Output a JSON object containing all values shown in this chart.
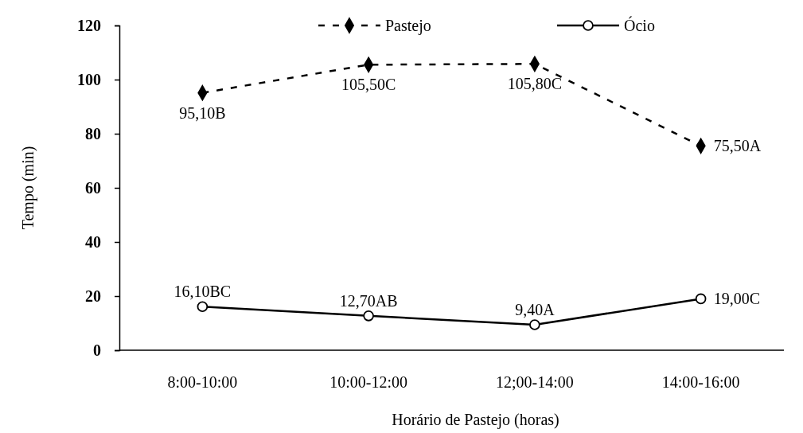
{
  "chart_data": {
    "type": "line",
    "xlabel": "Horário de Pastejo (horas)",
    "ylabel": "Tempo (min)",
    "categories": [
      "8:00-10:00",
      "10:00-12:00",
      "12;00-14:00",
      "14:00-16:00"
    ],
    "ylim": [
      0,
      120
    ],
    "yticks": [
      0,
      20,
      40,
      60,
      80,
      100,
      120
    ],
    "grid": false,
    "legend": "top",
    "series": [
      {
        "name": "Pastejo",
        "color": "#000000",
        "marker": "diamond",
        "line_style": "dashed",
        "values": [
          95.1,
          105.5,
          105.8,
          75.5
        ],
        "value_labels": [
          "95,10B",
          "105,50C",
          "105,80C",
          "75,50A"
        ]
      },
      {
        "name": "Ócio",
        "color": "#000000",
        "marker": "circle",
        "line_style": "solid",
        "values": [
          16.1,
          12.7,
          9.4,
          19.0
        ],
        "value_labels": [
          "16,10BC",
          "12,70AB",
          "9,40A",
          "19,00C"
        ]
      }
    ]
  }
}
